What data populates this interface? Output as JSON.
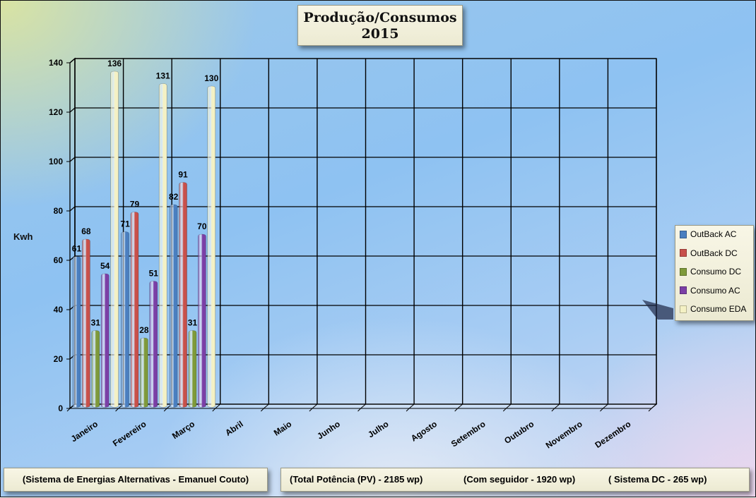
{
  "title": {
    "line1": "Produção/Consumos",
    "line2": "2015"
  },
  "footer": {
    "left": "(Sistema de Energias Alternativas - Emanuel Couto)",
    "right1": "(Total Potência (PV) - 2185 wp)",
    "right2": "(Com seguidor - 1920 wp)",
    "right3": "( Sistema DC - 265 wp)"
  },
  "chart_data": {
    "type": "bar",
    "ylabel": "Kwh",
    "ylim": [
      0,
      140
    ],
    "yticks": [
      0,
      20,
      40,
      60,
      80,
      100,
      120,
      140
    ],
    "grid": true,
    "legend_position": "right",
    "categories": [
      "Janeiro",
      "Fevereiro",
      "Março",
      "Abril",
      "Maio",
      "Junho",
      "Julho",
      "Agosto",
      "Setembro",
      "Outubro",
      "Novembro",
      "Dezembro"
    ],
    "series": [
      {
        "name": "OutBack AC",
        "color": "#4a7fc0",
        "values": [
          61,
          71,
          82,
          null,
          null,
          null,
          null,
          null,
          null,
          null,
          null,
          null
        ]
      },
      {
        "name": "OutBack DC",
        "color": "#c8504a",
        "values": [
          68,
          79,
          91,
          null,
          null,
          null,
          null,
          null,
          null,
          null,
          null,
          null
        ]
      },
      {
        "name": "Consumo DC",
        "color": "#7e9a3a",
        "values": [
          31,
          28,
          31,
          null,
          null,
          null,
          null,
          null,
          null,
          null,
          null,
          null
        ]
      },
      {
        "name": "Consumo AC",
        "color": "#7b3fa6",
        "values": [
          54,
          51,
          70,
          null,
          null,
          null,
          null,
          null,
          null,
          null,
          null,
          null
        ]
      },
      {
        "name": "Consumo EDA",
        "color": "#f4f1c4",
        "values": [
          136,
          131,
          130,
          null,
          null,
          null,
          null,
          null,
          null,
          null,
          null,
          null
        ]
      }
    ]
  }
}
